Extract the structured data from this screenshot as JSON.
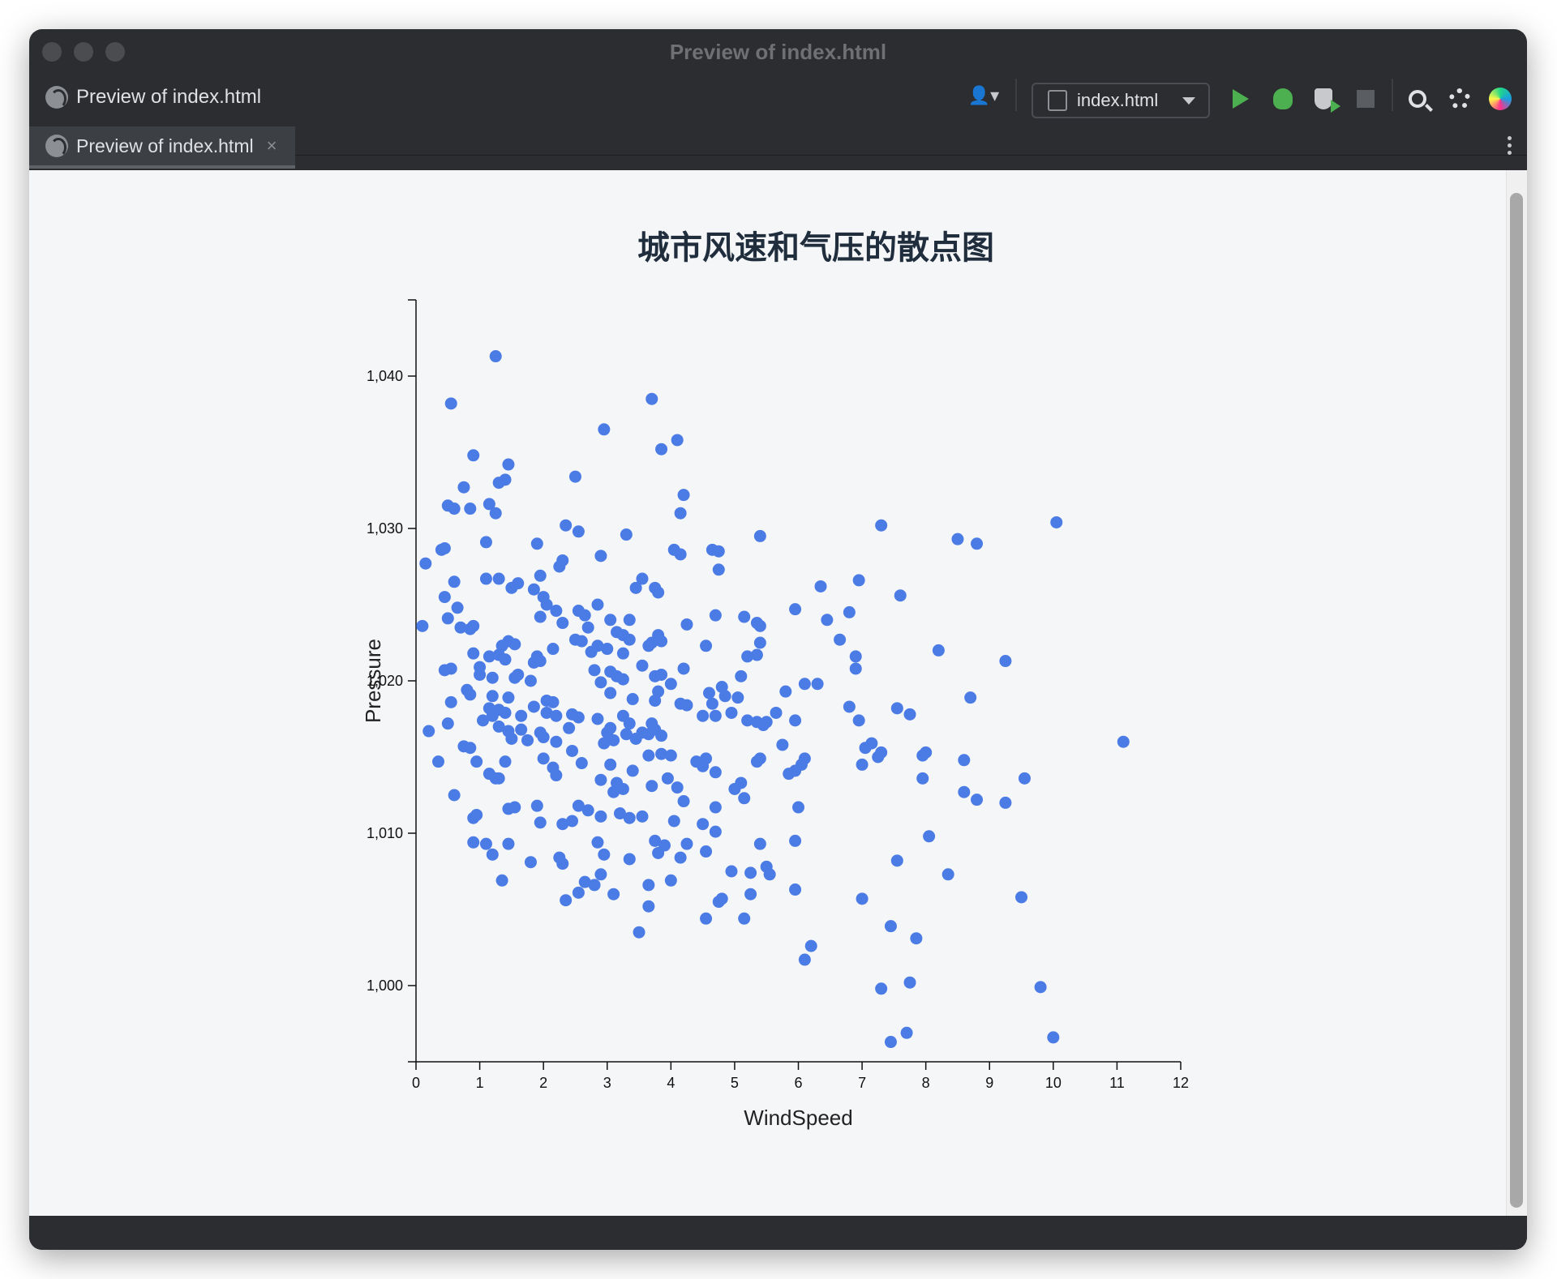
{
  "window": {
    "title": "Preview of index.html"
  },
  "toolbar": {
    "preview_label": "Preview of index.html",
    "run_config": "index.html",
    "icons": [
      "user-icon",
      "play-icon",
      "debug-icon",
      "coverage-icon",
      "stop-icon",
      "search-icon",
      "gear-icon",
      "brand-icon"
    ]
  },
  "tab": {
    "label": "Preview of index.html",
    "close": "×"
  },
  "chart_data": {
    "type": "scatter",
    "title": "城市风速和气压的散点图",
    "xlabel": "WindSpeed",
    "ylabel": "Pressure",
    "xlim": [
      0,
      12
    ],
    "ylim": [
      995,
      1045
    ],
    "xticks": [
      "0",
      "1",
      "2",
      "3",
      "4",
      "5",
      "6",
      "7",
      "8",
      "9",
      "10",
      "11",
      "12"
    ],
    "yticks": [
      "1,000",
      "1,010",
      "1,020",
      "1,030",
      "1,040"
    ],
    "ytick_values": [
      1000,
      1010,
      1020,
      1030,
      1040
    ],
    "point_color": "#4b7be5",
    "points": [
      [
        1.25,
        1041.3
      ],
      [
        0.55,
        1038.2
      ],
      [
        3.7,
        1038.5
      ],
      [
        4.1,
        1035.8
      ],
      [
        3.85,
        1035.2
      ],
      [
        2.95,
        1036.5
      ],
      [
        0.9,
        1034.8
      ],
      [
        1.45,
        1034.2
      ],
      [
        1.4,
        1033.2
      ],
      [
        1.3,
        1033.0
      ],
      [
        0.75,
        1032.7
      ],
      [
        2.5,
        1033.4
      ],
      [
        4.2,
        1032.2
      ],
      [
        1.15,
        1031.6
      ],
      [
        0.5,
        1031.5
      ],
      [
        0.6,
        1031.3
      ],
      [
        0.85,
        1031.3
      ],
      [
        1.25,
        1031.0
      ],
      [
        4.15,
        1031.0
      ],
      [
        7.3,
        1030.2
      ],
      [
        10.05,
        1030.4
      ],
      [
        2.35,
        1030.2
      ],
      [
        2.55,
        1029.8
      ],
      [
        3.3,
        1029.6
      ],
      [
        5.4,
        1029.5
      ],
      [
        8.5,
        1029.3
      ],
      [
        8.8,
        1029.0
      ],
      [
        1.1,
        1029.1
      ],
      [
        1.9,
        1029.0
      ],
      [
        4.05,
        1028.6
      ],
      [
        4.15,
        1028.3
      ],
      [
        4.65,
        1028.6
      ],
      [
        4.75,
        1028.5
      ],
      [
        2.9,
        1028.2
      ],
      [
        0.4,
        1028.6
      ],
      [
        0.45,
        1028.7
      ],
      [
        0.15,
        1027.7
      ],
      [
        2.3,
        1027.9
      ],
      [
        2.25,
        1027.5
      ],
      [
        4.75,
        1027.3
      ],
      [
        1.95,
        1026.9
      ],
      [
        1.1,
        1026.7
      ],
      [
        1.3,
        1026.7
      ],
      [
        0.6,
        1026.5
      ],
      [
        1.6,
        1026.4
      ],
      [
        3.55,
        1026.7
      ],
      [
        3.45,
        1026.1
      ],
      [
        3.75,
        1026.1
      ],
      [
        3.8,
        1025.8
      ],
      [
        6.35,
        1026.2
      ],
      [
        6.95,
        1026.6
      ],
      [
        1.5,
        1026.1
      ],
      [
        1.85,
        1026.0
      ],
      [
        0.45,
        1025.5
      ],
      [
        2.0,
        1025.5
      ],
      [
        2.05,
        1025.0
      ],
      [
        7.6,
        1025.6
      ],
      [
        0.65,
        1024.8
      ],
      [
        2.2,
        1024.6
      ],
      [
        2.55,
        1024.6
      ],
      [
        2.85,
        1025.0
      ],
      [
        5.95,
        1024.7
      ],
      [
        6.8,
        1024.5
      ],
      [
        0.5,
        1024.1
      ],
      [
        1.95,
        1024.2
      ],
      [
        2.65,
        1024.3
      ],
      [
        3.05,
        1024.0
      ],
      [
        3.35,
        1024.0
      ],
      [
        4.7,
        1024.3
      ],
      [
        5.15,
        1024.2
      ],
      [
        6.45,
        1024.0
      ],
      [
        0.1,
        1023.6
      ],
      [
        0.7,
        1023.5
      ],
      [
        0.85,
        1023.4
      ],
      [
        0.9,
        1023.6
      ],
      [
        2.3,
        1023.8
      ],
      [
        2.7,
        1023.5
      ],
      [
        3.15,
        1023.2
      ],
      [
        3.25,
        1023.0
      ],
      [
        4.25,
        1023.7
      ],
      [
        5.35,
        1023.8
      ],
      [
        5.4,
        1023.6
      ],
      [
        3.35,
        1022.7
      ],
      [
        3.8,
        1023.0
      ],
      [
        3.85,
        1022.6
      ],
      [
        1.45,
        1022.6
      ],
      [
        1.35,
        1022.3
      ],
      [
        1.55,
        1022.4
      ],
      [
        2.5,
        1022.7
      ],
      [
        2.6,
        1022.6
      ],
      [
        6.65,
        1022.7
      ],
      [
        2.85,
        1022.3
      ],
      [
        3.0,
        1022.1
      ],
      [
        3.25,
        1021.8
      ],
      [
        3.65,
        1022.3
      ],
      [
        3.7,
        1022.5
      ],
      [
        5.4,
        1022.5
      ],
      [
        8.2,
        1022.0
      ],
      [
        0.9,
        1021.8
      ],
      [
        1.15,
        1021.6
      ],
      [
        1.3,
        1021.7
      ],
      [
        1.4,
        1021.4
      ],
      [
        1.9,
        1021.6
      ],
      [
        2.15,
        1022.1
      ],
      [
        2.75,
        1021.9
      ],
      [
        4.55,
        1022.3
      ],
      [
        5.2,
        1021.6
      ],
      [
        5.35,
        1021.7
      ],
      [
        6.9,
        1021.6
      ],
      [
        9.25,
        1021.3
      ],
      [
        1.0,
        1020.9
      ],
      [
        0.55,
        1020.8
      ],
      [
        0.45,
        1020.7
      ],
      [
        1.85,
        1021.2
      ],
      [
        1.95,
        1021.3
      ],
      [
        3.55,
        1021.0
      ],
      [
        4.2,
        1020.8
      ],
      [
        6.9,
        1020.8
      ],
      [
        1.0,
        1020.4
      ],
      [
        1.2,
        1020.2
      ],
      [
        1.55,
        1020.2
      ],
      [
        1.6,
        1020.4
      ],
      [
        1.8,
        1020.0
      ],
      [
        2.8,
        1020.7
      ],
      [
        3.05,
        1020.6
      ],
      [
        3.15,
        1020.3
      ],
      [
        3.25,
        1020.1
      ],
      [
        3.75,
        1020.3
      ],
      [
        3.85,
        1020.4
      ],
      [
        4.0,
        1019.8
      ],
      [
        4.8,
        1019.6
      ],
      [
        5.1,
        1020.3
      ],
      [
        5.8,
        1019.3
      ],
      [
        6.1,
        1019.8
      ],
      [
        6.3,
        1019.8
      ],
      [
        2.9,
        1019.9
      ],
      [
        0.8,
        1019.4
      ],
      [
        0.85,
        1019.1
      ],
      [
        1.2,
        1019.0
      ],
      [
        1.45,
        1018.9
      ],
      [
        2.05,
        1018.7
      ],
      [
        2.15,
        1018.6
      ],
      [
        3.05,
        1019.2
      ],
      [
        3.4,
        1018.8
      ],
      [
        3.8,
        1019.3
      ],
      [
        3.75,
        1018.7
      ],
      [
        4.15,
        1018.5
      ],
      [
        4.25,
        1018.4
      ],
      [
        4.6,
        1019.2
      ],
      [
        4.65,
        1018.5
      ],
      [
        4.85,
        1019.0
      ],
      [
        5.05,
        1018.9
      ],
      [
        6.8,
        1018.3
      ],
      [
        7.55,
        1018.2
      ],
      [
        7.75,
        1017.8
      ],
      [
        8.7,
        1018.9
      ],
      [
        0.55,
        1018.6
      ],
      [
        1.15,
        1018.2
      ],
      [
        1.2,
        1017.7
      ],
      [
        1.3,
        1018.1
      ],
      [
        1.4,
        1017.9
      ],
      [
        1.65,
        1017.7
      ],
      [
        1.85,
        1018.3
      ],
      [
        2.05,
        1017.9
      ],
      [
        2.2,
        1017.7
      ],
      [
        2.45,
        1017.8
      ],
      [
        2.55,
        1017.6
      ],
      [
        2.85,
        1017.5
      ],
      [
        3.25,
        1017.7
      ],
      [
        3.35,
        1017.2
      ],
      [
        3.7,
        1017.2
      ],
      [
        4.5,
        1017.7
      ],
      [
        4.7,
        1017.7
      ],
      [
        4.95,
        1017.9
      ],
      [
        5.2,
        1017.4
      ],
      [
        5.35,
        1017.3
      ],
      [
        5.45,
        1017.1
      ],
      [
        5.5,
        1017.3
      ],
      [
        5.65,
        1017.9
      ],
      [
        5.95,
        1017.4
      ],
      [
        6.95,
        1017.4
      ],
      [
        0.5,
        1017.2
      ],
      [
        1.05,
        1017.4
      ],
      [
        1.3,
        1017.0
      ],
      [
        1.45,
        1016.7
      ],
      [
        1.65,
        1016.8
      ],
      [
        1.95,
        1016.6
      ],
      [
        2.0,
        1016.3
      ],
      [
        2.4,
        1016.9
      ],
      [
        3.0,
        1016.6
      ],
      [
        3.05,
        1016.9
      ],
      [
        3.3,
        1016.5
      ],
      [
        3.45,
        1016.2
      ],
      [
        3.55,
        1016.6
      ],
      [
        3.65,
        1016.5
      ],
      [
        3.75,
        1016.8
      ],
      [
        3.85,
        1016.4
      ],
      [
        0.2,
        1016.7
      ],
      [
        0.75,
        1015.7
      ],
      [
        0.85,
        1015.6
      ],
      [
        1.5,
        1016.2
      ],
      [
        1.75,
        1016.1
      ],
      [
        2.2,
        1016.0
      ],
      [
        2.45,
        1015.4
      ],
      [
        2.95,
        1015.9
      ],
      [
        3.1,
        1016.1
      ],
      [
        3.65,
        1015.1
      ],
      [
        3.85,
        1015.2
      ],
      [
        4.0,
        1015.1
      ],
      [
        4.55,
        1014.9
      ],
      [
        4.4,
        1014.7
      ],
      [
        5.35,
        1014.7
      ],
      [
        5.4,
        1014.9
      ],
      [
        5.75,
        1015.8
      ],
      [
        6.1,
        1014.9
      ],
      [
        6.05,
        1014.5
      ],
      [
        7.05,
        1015.6
      ],
      [
        7.15,
        1015.9
      ],
      [
        7.25,
        1015.0
      ],
      [
        7.3,
        1015.3
      ],
      [
        7.0,
        1014.5
      ],
      [
        7.95,
        1015.1
      ],
      [
        8.0,
        1015.3
      ],
      [
        8.6,
        1014.8
      ],
      [
        11.1,
        1016.0
      ],
      [
        0.35,
        1014.7
      ],
      [
        0.95,
        1014.7
      ],
      [
        1.4,
        1014.7
      ],
      [
        2.0,
        1014.9
      ],
      [
        2.15,
        1014.3
      ],
      [
        2.6,
        1014.6
      ],
      [
        3.05,
        1014.5
      ],
      [
        3.4,
        1014.1
      ],
      [
        4.5,
        1014.4
      ],
      [
        4.7,
        1014.0
      ],
      [
        5.85,
        1013.9
      ],
      [
        5.95,
        1014.1
      ],
      [
        1.15,
        1013.9
      ],
      [
        1.25,
        1013.6
      ],
      [
        1.3,
        1013.6
      ],
      [
        2.2,
        1013.8
      ],
      [
        2.9,
        1013.5
      ],
      [
        3.15,
        1013.3
      ],
      [
        3.25,
        1012.9
      ],
      [
        3.7,
        1013.1
      ],
      [
        3.95,
        1013.6
      ],
      [
        4.1,
        1013.0
      ],
      [
        5.1,
        1013.3
      ],
      [
        5.0,
        1012.9
      ],
      [
        5.15,
        1012.3
      ],
      [
        7.95,
        1013.6
      ],
      [
        8.6,
        1012.7
      ],
      [
        8.8,
        1012.2
      ],
      [
        9.25,
        1012.0
      ],
      [
        9.55,
        1013.6
      ],
      [
        0.6,
        1012.5
      ],
      [
        1.45,
        1011.6
      ],
      [
        1.55,
        1011.7
      ],
      [
        1.9,
        1011.8
      ],
      [
        2.55,
        1011.8
      ],
      [
        2.7,
        1011.5
      ],
      [
        2.9,
        1011.1
      ],
      [
        3.1,
        1012.7
      ],
      [
        3.2,
        1011.3
      ],
      [
        3.35,
        1011.0
      ],
      [
        3.55,
        1011.1
      ],
      [
        4.05,
        1010.8
      ],
      [
        4.2,
        1012.1
      ],
      [
        4.7,
        1011.7
      ],
      [
        6.0,
        1011.7
      ],
      [
        0.9,
        1011.0
      ],
      [
        0.95,
        1011.2
      ],
      [
        1.95,
        1010.7
      ],
      [
        2.3,
        1010.6
      ],
      [
        2.45,
        1010.8
      ],
      [
        4.5,
        1010.6
      ],
      [
        4.7,
        1010.1
      ],
      [
        3.75,
        1009.5
      ],
      [
        3.9,
        1009.2
      ],
      [
        4.25,
        1009.3
      ],
      [
        5.4,
        1009.3
      ],
      [
        5.95,
        1009.5
      ],
      [
        8.05,
        1009.8
      ],
      [
        0.9,
        1009.4
      ],
      [
        1.1,
        1009.3
      ],
      [
        1.2,
        1008.6
      ],
      [
        1.45,
        1009.3
      ],
      [
        2.25,
        1008.4
      ],
      [
        2.3,
        1008.0
      ],
      [
        2.85,
        1009.4
      ],
      [
        2.95,
        1008.6
      ],
      [
        3.35,
        1008.3
      ],
      [
        3.8,
        1008.7
      ],
      [
        4.15,
        1008.4
      ],
      [
        4.55,
        1008.8
      ],
      [
        1.8,
        1008.1
      ],
      [
        7.55,
        1008.2
      ],
      [
        8.35,
        1007.3
      ],
      [
        4.95,
        1007.5
      ],
      [
        5.25,
        1007.4
      ],
      [
        5.5,
        1007.8
      ],
      [
        5.55,
        1007.3
      ],
      [
        2.55,
        1006.1
      ],
      [
        2.65,
        1006.8
      ],
      [
        2.8,
        1006.6
      ],
      [
        2.9,
        1007.3
      ],
      [
        3.65,
        1006.6
      ],
      [
        4.0,
        1006.9
      ],
      [
        1.35,
        1006.9
      ],
      [
        2.35,
        1005.6
      ],
      [
        3.1,
        1006.0
      ],
      [
        3.65,
        1005.2
      ],
      [
        4.75,
        1005.5
      ],
      [
        4.8,
        1005.7
      ],
      [
        5.25,
        1006.0
      ],
      [
        5.95,
        1006.3
      ],
      [
        7.0,
        1005.7
      ],
      [
        9.5,
        1005.8
      ],
      [
        4.55,
        1004.4
      ],
      [
        5.15,
        1004.4
      ],
      [
        3.5,
        1003.5
      ],
      [
        7.45,
        1003.9
      ],
      [
        7.85,
        1003.1
      ],
      [
        6.2,
        1002.6
      ],
      [
        6.1,
        1001.7
      ],
      [
        7.3,
        999.8
      ],
      [
        7.75,
        1000.2
      ],
      [
        9.8,
        999.9
      ],
      [
        7.45,
        996.3
      ],
      [
        7.7,
        996.9
      ],
      [
        10.0,
        996.6
      ]
    ]
  }
}
